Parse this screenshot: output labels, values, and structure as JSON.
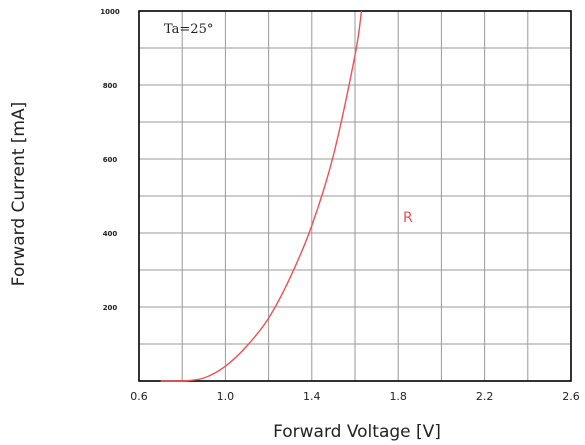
{
  "chart_data": {
    "type": "line",
    "xlabel": "Forward Voltage  [V]",
    "ylabel": "Forward Current  [mA]",
    "xlim": [
      0.6,
      2.6
    ],
    "ylim": [
      0,
      1000
    ],
    "x_ticks": [
      "0.6",
      "1.0",
      "1.4",
      "1.8",
      "2.2",
      "2.6"
    ],
    "y_ticks": [
      "200",
      "400",
      "600",
      "800",
      "1000"
    ],
    "grid": true,
    "condition_label": "Ta=25°",
    "series": [
      {
        "name": "R",
        "color": "#f05050",
        "x": [
          0.7,
          0.8,
          0.9,
          1.0,
          1.1,
          1.2,
          1.3,
          1.4,
          1.5,
          1.6,
          1.63
        ],
        "y": [
          0,
          0,
          8,
          40,
          95,
          170,
          280,
          420,
          610,
          880,
          1000
        ]
      }
    ]
  }
}
